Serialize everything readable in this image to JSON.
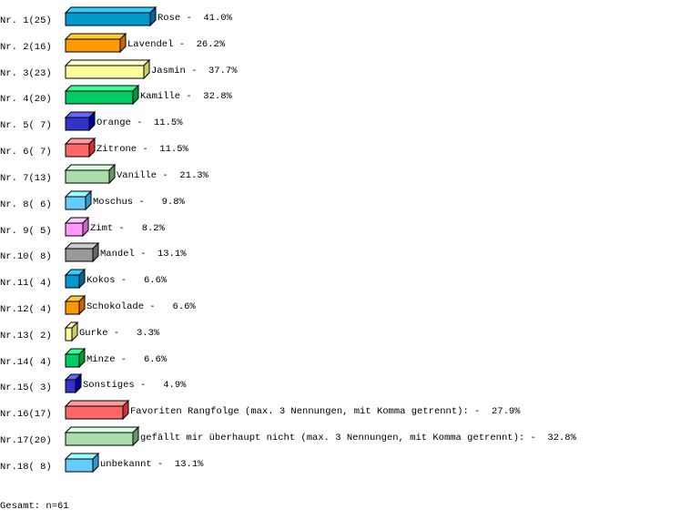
{
  "chart_data": {
    "type": "bar",
    "orientation": "horizontal",
    "style": "3d",
    "grid": false,
    "rows": [
      {
        "rank": "Nr. 1",
        "count": 25,
        "label": "Rose",
        "percent": "41.0%"
      },
      {
        "rank": "Nr. 2",
        "count": 16,
        "label": "Lavendel",
        "percent": "26.2%"
      },
      {
        "rank": "Nr. 3",
        "count": 23,
        "label": "Jasmin",
        "percent": "37.7%"
      },
      {
        "rank": "Nr. 4",
        "count": 20,
        "label": "Kamille",
        "percent": "32.8%"
      },
      {
        "rank": "Nr. 5",
        "count": 7,
        "label": "Orange",
        "percent": "11.5%"
      },
      {
        "rank": "Nr. 6",
        "count": 7,
        "label": "Zitrone",
        "percent": "11.5%"
      },
      {
        "rank": "Nr. 7",
        "count": 13,
        "label": "Vanille",
        "percent": "21.3%"
      },
      {
        "rank": "Nr. 8",
        "count": 6,
        "label": "Moschus",
        "percent": "9.8%"
      },
      {
        "rank": "Nr. 9",
        "count": 5,
        "label": "Zimt",
        "percent": "8.2%"
      },
      {
        "rank": "Nr.10",
        "count": 8,
        "label": "Mandel",
        "percent": "13.1%"
      },
      {
        "rank": "Nr.11",
        "count": 4,
        "label": "Kokos",
        "percent": "6.6%"
      },
      {
        "rank": "Nr.12",
        "count": 4,
        "label": "Schokolade",
        "percent": "6.6%"
      },
      {
        "rank": "Nr.13",
        "count": 2,
        "label": "Gurke",
        "percent": "3.3%"
      },
      {
        "rank": "Nr.14",
        "count": 4,
        "label": "Minze",
        "percent": "6.6%"
      },
      {
        "rank": "Nr.15",
        "count": 3,
        "label": "Sonstiges",
        "percent": "4.9%"
      },
      {
        "rank": "Nr.16",
        "count": 17,
        "label": "Favoriten Rangfolge (max. 3 Nennungen, mit Komma getrennt):",
        "percent": "27.9%"
      },
      {
        "rank": "Nr.17",
        "count": 20,
        "label": "gefällt mir überhaupt nicht (max. 3 Nennungen, mit Komma getrennt):",
        "percent": "32.8%"
      },
      {
        "rank": "Nr.18",
        "count": 8,
        "label": "unbekannt",
        "percent": "13.1%"
      }
    ],
    "palette": [
      {
        "front": "#0099cc",
        "top": "#33ccff",
        "side": "#006699"
      },
      {
        "front": "#ff9900",
        "top": "#ffcc33",
        "side": "#cc6600"
      },
      {
        "front": "#ffff99",
        "top": "#ffffcc",
        "side": "#cccc66"
      },
      {
        "front": "#00cc66",
        "top": "#33ff99",
        "side": "#009933"
      },
      {
        "front": "#3333cc",
        "top": "#6666ff",
        "side": "#000099"
      },
      {
        "front": "#ff6666",
        "top": "#ff9999",
        "side": "#cc3333"
      },
      {
        "front": "#aaddaa",
        "top": "#ddffdd",
        "side": "#669966"
      },
      {
        "front": "#66ccff",
        "top": "#99ffff",
        "side": "#3399cc"
      },
      {
        "front": "#ff99ff",
        "top": "#ffccff",
        "side": "#cc66cc"
      },
      {
        "front": "#999999",
        "top": "#cccccc",
        "side": "#666666"
      }
    ],
    "total": "Gesamt: n=61"
  }
}
